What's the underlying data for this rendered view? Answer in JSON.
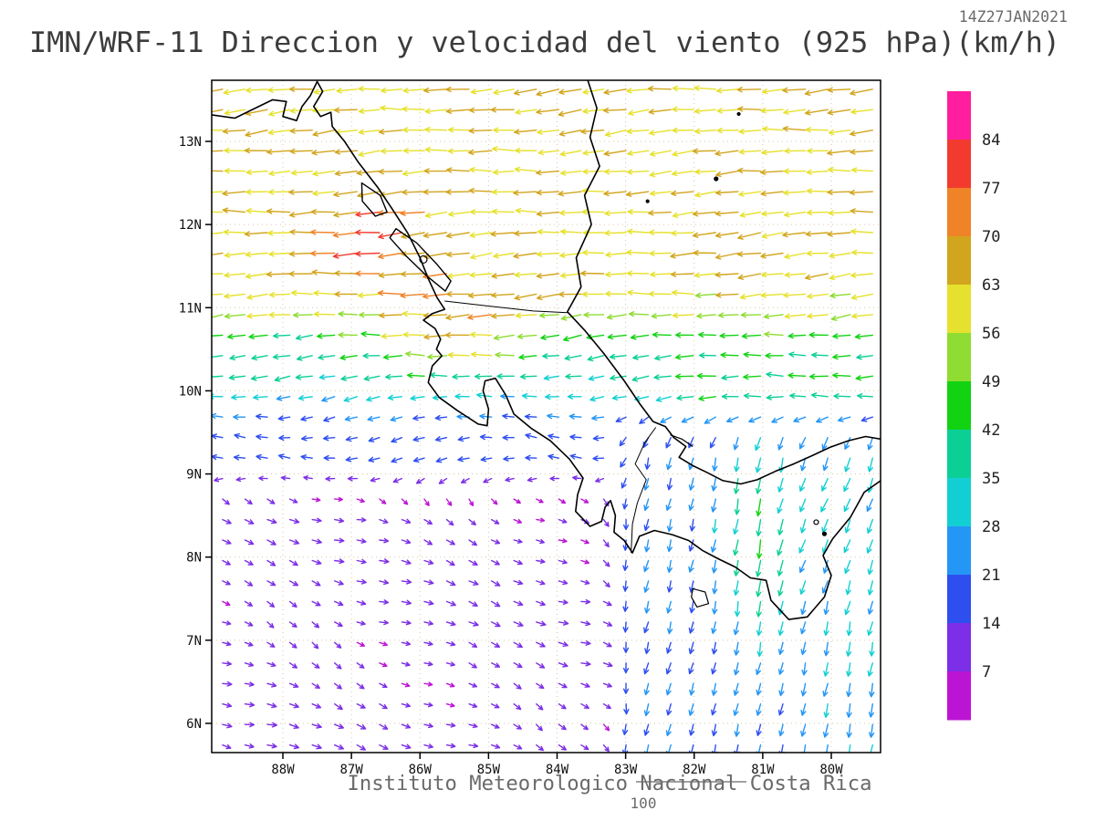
{
  "page": {
    "background": "#ffffff"
  },
  "chart_data": {
    "type": "vector_field_map",
    "model": "IMN/WRF-11",
    "variable": "Direccion y velocidad del viento",
    "level": "925 hPa",
    "units": "km/h",
    "title": "IMN/WRF-11 Direccion y velocidad del viento (925 hPa)(km/h)",
    "timestamp": "14Z27JAN2021",
    "caption": "Instituto Meteorologico Nacional Costa Rica",
    "scale_label": "100",
    "lon_range": [
      -89.05,
      -79.28
    ],
    "lat_range": [
      5.65,
      13.73
    ],
    "grid_on": true,
    "x_ticks": [
      {
        "label": "88W",
        "value": -88
      },
      {
        "label": "87W",
        "value": -87
      },
      {
        "label": "86W",
        "value": -86
      },
      {
        "label": "85W",
        "value": -85
      },
      {
        "label": "84W",
        "value": -84
      },
      {
        "label": "83W",
        "value": -83
      },
      {
        "label": "82W",
        "value": -82
      },
      {
        "label": "81W",
        "value": -81
      },
      {
        "label": "80W",
        "value": -80
      }
    ],
    "y_ticks": [
      {
        "label": "13N",
        "value": 13
      },
      {
        "label": "12N",
        "value": 12
      },
      {
        "label": "11N",
        "value": 11
      },
      {
        "label": "10N",
        "value": 10
      },
      {
        "label": "9N",
        "value": 9
      },
      {
        "label": "8N",
        "value": 8
      },
      {
        "label": "7N",
        "value": 7
      },
      {
        "label": "6N",
        "value": 6
      }
    ],
    "colorbar": {
      "levels": [
        7,
        14,
        21,
        28,
        35,
        42,
        49,
        56,
        63,
        70,
        77,
        84
      ],
      "colors_low_to_high": [
        "#bc14d4",
        "#7c2fe6",
        "#2e4ff0",
        "#2496f5",
        "#12cfd3",
        "#0ccf96",
        "#12d312",
        "#8fdc32",
        "#e6e12e",
        "#d2a51e",
        "#f08228",
        "#f23b2e",
        "#ff1f9e"
      ]
    },
    "vector_grid": {
      "lon0": -88.88,
      "dlon": 0.327,
      "ncols": 30,
      "lat0": 5.74,
      "dlat": 0.2465,
      "nrows": 33
    },
    "wind_model": {
      "description": "Easterly trades 50-65 km/h north of 10.5N with Papagayo gap jet to 80-88 km/h near the Nicaragua coast, a second 60-70 km/h jet over Nicoya, calm band near 8.6-9.2N, weak 7-13 km/h east-southeast drift in the southwest Pacific quadrant, and 20-45 km/h northerly gap flow over Panama turning south-southwest into the Gulf of Panama.",
      "north": {
        "base": 18,
        "ramp1": {
          "from": 9.5,
          "to": 10.3,
          "amp": 20
        },
        "ramp2": {
          "from": 10.35,
          "to": 11.35,
          "amp": 24
        }
      },
      "jets": [
        {
          "lon": -86.6,
          "lat": 11.85,
          "sig_lon": 0.75,
          "sig_lat": 0.45,
          "amp": 20
        },
        {
          "lon": -85.4,
          "lat": 10.7,
          "sig_lon": 0.9,
          "sig_lat": 0.5,
          "amp": 24
        }
      ],
      "carib": {
        "lon_from": -82.9,
        "lon_to": -81.9,
        "lat": 9.9,
        "sig_lat": 0.55,
        "amp": 10
      },
      "south": {
        "u": 9,
        "v": -3.5
      },
      "dir_switch": {
        "from": 8.55,
        "to": 9.2
      },
      "gap": {
        "lon_from": -83.5,
        "lon_to": -82.7,
        "lat_from": 9.25,
        "lat_to": 9.95,
        "base": 20,
        "jet": {
          "lon": -81.05,
          "sig_lon": 0.55,
          "lat": 8.3,
          "sig_lat": 1.2,
          "amp": 24
        },
        "east_boost": 8,
        "east_from": -80.7,
        "east_to": -79.8
      },
      "jitter": {
        "speed": 0.18,
        "dir": 0.21
      }
    },
    "geo": {
      "coastlines": [
        {
          "name": "el-salvador-coast",
          "pts": [
            [
              -89.05,
              13.32
            ],
            [
              -88.7,
              13.28
            ],
            [
              -88.4,
              13.4
            ],
            [
              -88.15,
              13.5
            ],
            [
              -87.95,
              13.48
            ]
          ]
        },
        {
          "name": "fonseca-gulf",
          "pts": [
            [
              -87.95,
              13.48
            ],
            [
              -88.0,
              13.3
            ],
            [
              -87.8,
              13.25
            ],
            [
              -87.72,
              13.42
            ],
            [
              -87.6,
              13.55
            ],
            [
              -87.5,
              13.72
            ],
            [
              -87.42,
              13.6
            ],
            [
              -87.55,
              13.42
            ],
            [
              -87.45,
              13.3
            ],
            [
              -87.3,
              13.35
            ],
            [
              -87.28,
              13.18
            ],
            [
              -87.1,
              13.0
            ]
          ]
        },
        {
          "name": "pacific-coast",
          "pts": [
            [
              -87.1,
              13.0
            ],
            [
              -86.9,
              12.75
            ],
            [
              -86.62,
              12.45
            ],
            [
              -86.4,
              12.18
            ],
            [
              -86.18,
              11.9
            ],
            [
              -86.0,
              11.6
            ],
            [
              -85.88,
              11.35
            ],
            [
              -85.75,
              11.12
            ],
            [
              -85.64,
              10.98
            ],
            [
              -85.82,
              10.93
            ],
            [
              -85.95,
              10.85
            ],
            [
              -85.78,
              10.75
            ],
            [
              -85.7,
              10.62
            ],
            [
              -85.76,
              10.5
            ],
            [
              -85.68,
              10.42
            ],
            [
              -85.82,
              10.3
            ],
            [
              -85.88,
              10.1
            ],
            [
              -85.72,
              9.92
            ],
            [
              -85.45,
              9.76
            ],
            [
              -85.15,
              9.6
            ],
            [
              -85.02,
              9.58
            ],
            [
              -85.0,
              9.78
            ],
            [
              -85.08,
              10.0
            ],
            [
              -85.05,
              10.12
            ],
            [
              -84.9,
              10.15
            ],
            [
              -84.75,
              9.95
            ],
            [
              -84.63,
              9.72
            ],
            [
              -84.38,
              9.55
            ],
            [
              -84.1,
              9.4
            ],
            [
              -83.82,
              9.18
            ],
            [
              -83.62,
              8.95
            ],
            [
              -83.7,
              8.75
            ],
            [
              -83.73,
              8.55
            ],
            [
              -83.52,
              8.37
            ],
            [
              -83.35,
              8.43
            ],
            [
              -83.3,
              8.6
            ],
            [
              -83.22,
              8.68
            ],
            [
              -83.15,
              8.5
            ],
            [
              -83.17,
              8.3
            ],
            [
              -83.02,
              8.2
            ],
            [
              -82.9,
              8.05
            ],
            [
              -82.8,
              8.25
            ],
            [
              -82.58,
              8.32
            ],
            [
              -82.32,
              8.27
            ],
            [
              -82.08,
              8.2
            ],
            [
              -81.88,
              8.08
            ],
            [
              -81.65,
              7.98
            ],
            [
              -81.4,
              7.88
            ],
            [
              -81.18,
              7.75
            ],
            [
              -80.95,
              7.72
            ],
            [
              -80.88,
              7.48
            ],
            [
              -80.62,
              7.25
            ],
            [
              -80.35,
              7.28
            ],
            [
              -80.1,
              7.52
            ],
            [
              -80.0,
              7.78
            ],
            [
              -80.12,
              8.02
            ],
            [
              -79.98,
              8.22
            ],
            [
              -79.72,
              8.48
            ],
            [
              -79.52,
              8.78
            ],
            [
              -79.28,
              8.92
            ]
          ]
        },
        {
          "name": "caribbean-coast",
          "pts": [
            [
              -83.55,
              13.73
            ],
            [
              -83.42,
              13.4
            ],
            [
              -83.52,
              13.05
            ],
            [
              -83.38,
              12.7
            ],
            [
              -83.6,
              12.35
            ],
            [
              -83.5,
              12.0
            ],
            [
              -83.72,
              11.6
            ],
            [
              -83.65,
              11.25
            ],
            [
              -83.85,
              10.95
            ],
            [
              -83.6,
              10.73
            ],
            [
              -83.32,
              10.45
            ],
            [
              -83.02,
              10.12
            ],
            [
              -82.8,
              9.85
            ],
            [
              -82.6,
              9.63
            ],
            [
              -82.42,
              9.57
            ],
            [
              -82.3,
              9.44
            ],
            [
              -82.12,
              9.33
            ],
            [
              -82.22,
              9.2
            ],
            [
              -82.02,
              9.1
            ],
            [
              -81.82,
              9.02
            ],
            [
              -81.58,
              8.92
            ],
            [
              -81.32,
              8.88
            ],
            [
              -81.08,
              8.93
            ],
            [
              -80.82,
              9.03
            ],
            [
              -80.55,
              9.12
            ],
            [
              -80.28,
              9.22
            ],
            [
              -80.02,
              9.32
            ],
            [
              -79.75,
              9.4
            ],
            [
              -79.5,
              9.45
            ],
            [
              -79.28,
              9.42
            ]
          ]
        }
      ],
      "lakes": [
        {
          "name": "lake-nicaragua",
          "closed": true,
          "pts": [
            [
              -86.35,
              11.95
            ],
            [
              -86.05,
              11.78
            ],
            [
              -85.75,
              11.52
            ],
            [
              -85.55,
              11.32
            ],
            [
              -85.63,
              11.2
            ],
            [
              -85.9,
              11.38
            ],
            [
              -86.2,
              11.62
            ],
            [
              -86.44,
              11.84
            ]
          ]
        },
        {
          "name": "lake-managua",
          "closed": true,
          "pts": [
            [
              -86.85,
              12.5
            ],
            [
              -86.58,
              12.35
            ],
            [
              -86.48,
              12.15
            ],
            [
              -86.65,
              12.1
            ],
            [
              -86.84,
              12.28
            ]
          ]
        }
      ],
      "borders": [
        {
          "name": "nicaragua-costa-rica-border",
          "pts": [
            [
              -85.64,
              11.08
            ],
            [
              -85.0,
              11.02
            ],
            [
              -84.35,
              10.96
            ],
            [
              -83.85,
              10.94
            ]
          ]
        },
        {
          "name": "costa-rica-panama-border",
          "pts": [
            [
              -82.56,
              9.56
            ],
            [
              -82.72,
              9.38
            ],
            [
              -82.86,
              9.12
            ],
            [
              -82.7,
              8.93
            ],
            [
              -82.83,
              8.65
            ],
            [
              -82.9,
              8.4
            ],
            [
              -82.92,
              8.05
            ]
          ]
        }
      ],
      "islands": [
        {
          "name": "ometepe-island",
          "cx": -85.95,
          "cy": 11.58,
          "r": 4
        },
        {
          "name": "coiba-island",
          "closed": true,
          "pts": [
            [
              -82.02,
              7.62
            ],
            [
              -81.84,
              7.58
            ],
            [
              -81.79,
              7.44
            ],
            [
              -81.96,
              7.4
            ],
            [
              -82.04,
              7.52
            ]
          ]
        },
        {
          "name": "pearl-islands-1",
          "cx": -80.22,
          "cy": 8.42,
          "r": 2.5
        },
        {
          "name": "pearl-islands-2",
          "cx": -80.1,
          "cy": 8.28,
          "r": 2
        },
        {
          "name": "bocas-islands",
          "closed": false,
          "pts": [
            [
              -82.35,
              9.47
            ],
            [
              -82.18,
              9.42
            ],
            [
              -82.02,
              9.33
            ]
          ]
        },
        {
          "name": "corn-island",
          "cx": -82.68,
          "cy": 12.28,
          "r": 1.5
        },
        {
          "name": "san-andres-island",
          "cx": -81.68,
          "cy": 12.55,
          "r": 2
        },
        {
          "name": "providencia-island",
          "cx": -81.35,
          "cy": 13.33,
          "r": 1.5
        }
      ]
    }
  }
}
